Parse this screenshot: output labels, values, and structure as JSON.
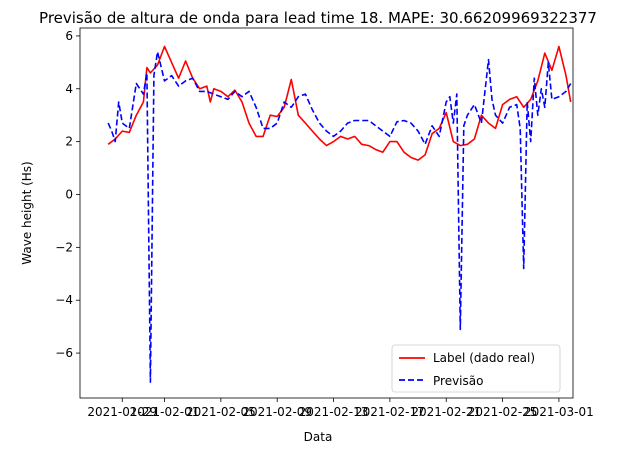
{
  "chart_data": {
    "type": "line",
    "title": "Previsão de altura de onda para lead time 18. MAPE: 30.66209969322377",
    "xlabel": "Data",
    "ylabel": "Wave height (Hs)",
    "xlim": [
      "2021-01-26",
      "2021-03-02"
    ],
    "ylim": [
      -7.7,
      6.3
    ],
    "xticks": [
      "2021-01-29",
      "2021-02-01",
      "2021-02-05",
      "2021-02-09",
      "2021-02-13",
      "2021-02-17",
      "2021-02-21",
      "2021-02-25",
      "2021-03-01"
    ],
    "yticks": [
      -6,
      -4,
      -2,
      0,
      2,
      4,
      6
    ],
    "ytick_labels": [
      "−6",
      "−4",
      "−2",
      "0",
      "2",
      "4",
      "6"
    ],
    "legend_position": "lower-right",
    "series": [
      {
        "name": "Label (dado real)",
        "color": "#ff0000",
        "style": "solid",
        "points": [
          [
            "2021-01-28 00:00",
            1.9
          ],
          [
            "2021-01-28 12:00",
            2.1
          ],
          [
            "2021-01-29 00:00",
            2.4
          ],
          [
            "2021-01-29 12:00",
            2.35
          ],
          [
            "2021-01-30 00:00",
            3.0
          ],
          [
            "2021-01-30 12:00",
            3.5
          ],
          [
            "2021-01-30 18:00",
            4.8
          ],
          [
            "2021-01-31 00:00",
            4.6
          ],
          [
            "2021-01-31 12:00",
            4.9
          ],
          [
            "2021-02-01 00:00",
            5.6
          ],
          [
            "2021-02-01 12:00",
            5.0
          ],
          [
            "2021-02-02 00:00",
            4.4
          ],
          [
            "2021-02-02 12:00",
            5.05
          ],
          [
            "2021-02-03 00:00",
            4.4
          ],
          [
            "2021-02-03 12:00",
            4.0
          ],
          [
            "2021-02-04 00:00",
            4.1
          ],
          [
            "2021-02-04 06:00",
            3.5
          ],
          [
            "2021-02-04 12:00",
            4.0
          ],
          [
            "2021-02-05 00:00",
            3.9
          ],
          [
            "2021-02-05 12:00",
            3.7
          ],
          [
            "2021-02-06 00:00",
            3.95
          ],
          [
            "2021-02-06 12:00",
            3.5
          ],
          [
            "2021-02-07 00:00",
            2.7
          ],
          [
            "2021-02-07 12:00",
            2.2
          ],
          [
            "2021-02-08 00:00",
            2.2
          ],
          [
            "2021-02-08 12:00",
            3.0
          ],
          [
            "2021-02-09 00:00",
            2.95
          ],
          [
            "2021-02-09 12:00",
            3.3
          ],
          [
            "2021-02-10 00:00",
            4.35
          ],
          [
            "2021-02-10 12:00",
            3.0
          ],
          [
            "2021-02-11 00:00",
            2.7
          ],
          [
            "2021-02-11 12:00",
            2.4
          ],
          [
            "2021-02-12 00:00",
            2.1
          ],
          [
            "2021-02-12 12:00",
            1.85
          ],
          [
            "2021-02-13 00:00",
            2.0
          ],
          [
            "2021-02-13 12:00",
            2.2
          ],
          [
            "2021-02-14 00:00",
            2.1
          ],
          [
            "2021-02-14 12:00",
            2.2
          ],
          [
            "2021-02-15 00:00",
            1.9
          ],
          [
            "2021-02-15 12:00",
            1.85
          ],
          [
            "2021-02-16 00:00",
            1.7
          ],
          [
            "2021-02-16 12:00",
            1.6
          ],
          [
            "2021-02-17 00:00",
            2.0
          ],
          [
            "2021-02-17 12:00",
            2.0
          ],
          [
            "2021-02-18 00:00",
            1.6
          ],
          [
            "2021-02-18 12:00",
            1.4
          ],
          [
            "2021-02-19 00:00",
            1.3
          ],
          [
            "2021-02-19 12:00",
            1.5
          ],
          [
            "2021-02-20 00:00",
            2.3
          ],
          [
            "2021-02-20 12:00",
            2.5
          ],
          [
            "2021-02-21 00:00",
            3.1
          ],
          [
            "2021-02-21 12:00",
            2.0
          ],
          [
            "2021-02-22 00:00",
            1.85
          ],
          [
            "2021-02-22 12:00",
            1.9
          ],
          [
            "2021-02-23 00:00",
            2.1
          ],
          [
            "2021-02-23 12:00",
            3.0
          ],
          [
            "2021-02-24 00:00",
            2.7
          ],
          [
            "2021-02-24 12:00",
            2.5
          ],
          [
            "2021-02-25 00:00",
            3.4
          ],
          [
            "2021-02-25 12:00",
            3.6
          ],
          [
            "2021-02-26 00:00",
            3.7
          ],
          [
            "2021-02-26 12:00",
            3.3
          ],
          [
            "2021-02-27 00:00",
            3.6
          ],
          [
            "2021-02-27 12:00",
            4.3
          ],
          [
            "2021-02-28 00:00",
            5.35
          ],
          [
            "2021-02-28 12:00",
            4.7
          ],
          [
            "2021-03-01 00:00",
            5.6
          ],
          [
            "2021-03-01 12:00",
            4.5
          ],
          [
            "2021-03-01 20:00",
            3.5
          ]
        ]
      },
      {
        "name": "Previsão",
        "color": "#0000ff",
        "style": "dashed",
        "points": [
          [
            "2021-01-28 00:00",
            2.7
          ],
          [
            "2021-01-28 06:00",
            2.4
          ],
          [
            "2021-01-28 12:00",
            2.0
          ],
          [
            "2021-01-28 18:00",
            3.5
          ],
          [
            "2021-01-29 00:00",
            2.7
          ],
          [
            "2021-01-29 12:00",
            2.5
          ],
          [
            "2021-01-30 00:00",
            4.2
          ],
          [
            "2021-01-30 12:00",
            3.8
          ],
          [
            "2021-01-30 18:00",
            4.6
          ],
          [
            "2021-01-31 00:00",
            -7.1
          ],
          [
            "2021-01-31 06:00",
            4.5
          ],
          [
            "2021-01-31 12:00",
            5.4
          ],
          [
            "2021-02-01 00:00",
            4.3
          ],
          [
            "2021-02-01 12:00",
            4.5
          ],
          [
            "2021-02-02 00:00",
            4.1
          ],
          [
            "2021-02-02 12:00",
            4.3
          ],
          [
            "2021-02-03 00:00",
            4.4
          ],
          [
            "2021-02-03 12:00",
            3.9
          ],
          [
            "2021-02-04 00:00",
            3.9
          ],
          [
            "2021-02-04 12:00",
            3.8
          ],
          [
            "2021-02-05 00:00",
            3.7
          ],
          [
            "2021-02-05 12:00",
            3.6
          ],
          [
            "2021-02-06 00:00",
            3.9
          ],
          [
            "2021-02-06 12:00",
            3.7
          ],
          [
            "2021-02-07 00:00",
            3.9
          ],
          [
            "2021-02-07 12:00",
            3.3
          ],
          [
            "2021-02-08 00:00",
            2.5
          ],
          [
            "2021-02-08 12:00",
            2.5
          ],
          [
            "2021-02-09 00:00",
            2.7
          ],
          [
            "2021-02-09 12:00",
            3.5
          ],
          [
            "2021-02-10 00:00",
            3.3
          ],
          [
            "2021-02-10 12:00",
            3.7
          ],
          [
            "2021-02-11 00:00",
            3.8
          ],
          [
            "2021-02-11 12:00",
            3.2
          ],
          [
            "2021-02-12 00:00",
            2.7
          ],
          [
            "2021-02-12 12:00",
            2.4
          ],
          [
            "2021-02-13 00:00",
            2.2
          ],
          [
            "2021-02-13 12:00",
            2.4
          ],
          [
            "2021-02-14 00:00",
            2.7
          ],
          [
            "2021-02-14 12:00",
            2.8
          ],
          [
            "2021-02-15 00:00",
            2.8
          ],
          [
            "2021-02-15 12:00",
            2.8
          ],
          [
            "2021-02-16 00:00",
            2.6
          ],
          [
            "2021-02-16 12:00",
            2.4
          ],
          [
            "2021-02-17 00:00",
            2.2
          ],
          [
            "2021-02-17 12:00",
            2.75
          ],
          [
            "2021-02-18 00:00",
            2.8
          ],
          [
            "2021-02-18 12:00",
            2.7
          ],
          [
            "2021-02-19 00:00",
            2.4
          ],
          [
            "2021-02-19 12:00",
            1.9
          ],
          [
            "2021-02-20 00:00",
            2.6
          ],
          [
            "2021-02-20 12:00",
            2.2
          ],
          [
            "2021-02-21 00:00",
            3.5
          ],
          [
            "2021-02-21 06:00",
            3.7
          ],
          [
            "2021-02-21 12:00",
            2.7
          ],
          [
            "2021-02-21 18:00",
            3.8
          ],
          [
            "2021-02-22 00:00",
            -5.1
          ],
          [
            "2021-02-22 06:00",
            2.6
          ],
          [
            "2021-02-22 12:00",
            3.0
          ],
          [
            "2021-02-23 00:00",
            3.4
          ],
          [
            "2021-02-23 12:00",
            2.7
          ],
          [
            "2021-02-24 00:00",
            5.1
          ],
          [
            "2021-02-24 06:00",
            3.6
          ],
          [
            "2021-02-24 12:00",
            3.0
          ],
          [
            "2021-02-25 00:00",
            2.7
          ],
          [
            "2021-02-25 12:00",
            3.3
          ],
          [
            "2021-02-26 00:00",
            3.4
          ],
          [
            "2021-02-26 06:00",
            2.5
          ],
          [
            "2021-02-26 12:00",
            -2.8
          ],
          [
            "2021-02-26 18:00",
            3.5
          ],
          [
            "2021-02-27 00:00",
            2.0
          ],
          [
            "2021-02-27 06:00",
            4.4
          ],
          [
            "2021-02-27 12:00",
            3.0
          ],
          [
            "2021-02-27 18:00",
            4.0
          ],
          [
            "2021-02-28 00:00",
            3.3
          ],
          [
            "2021-02-28 06:00",
            5.0
          ],
          [
            "2021-02-28 12:00",
            3.6
          ],
          [
            "2021-03-01 00:00",
            3.7
          ],
          [
            "2021-03-01 12:00",
            3.9
          ],
          [
            "2021-03-01 20:00",
            4.2
          ]
        ]
      }
    ]
  }
}
